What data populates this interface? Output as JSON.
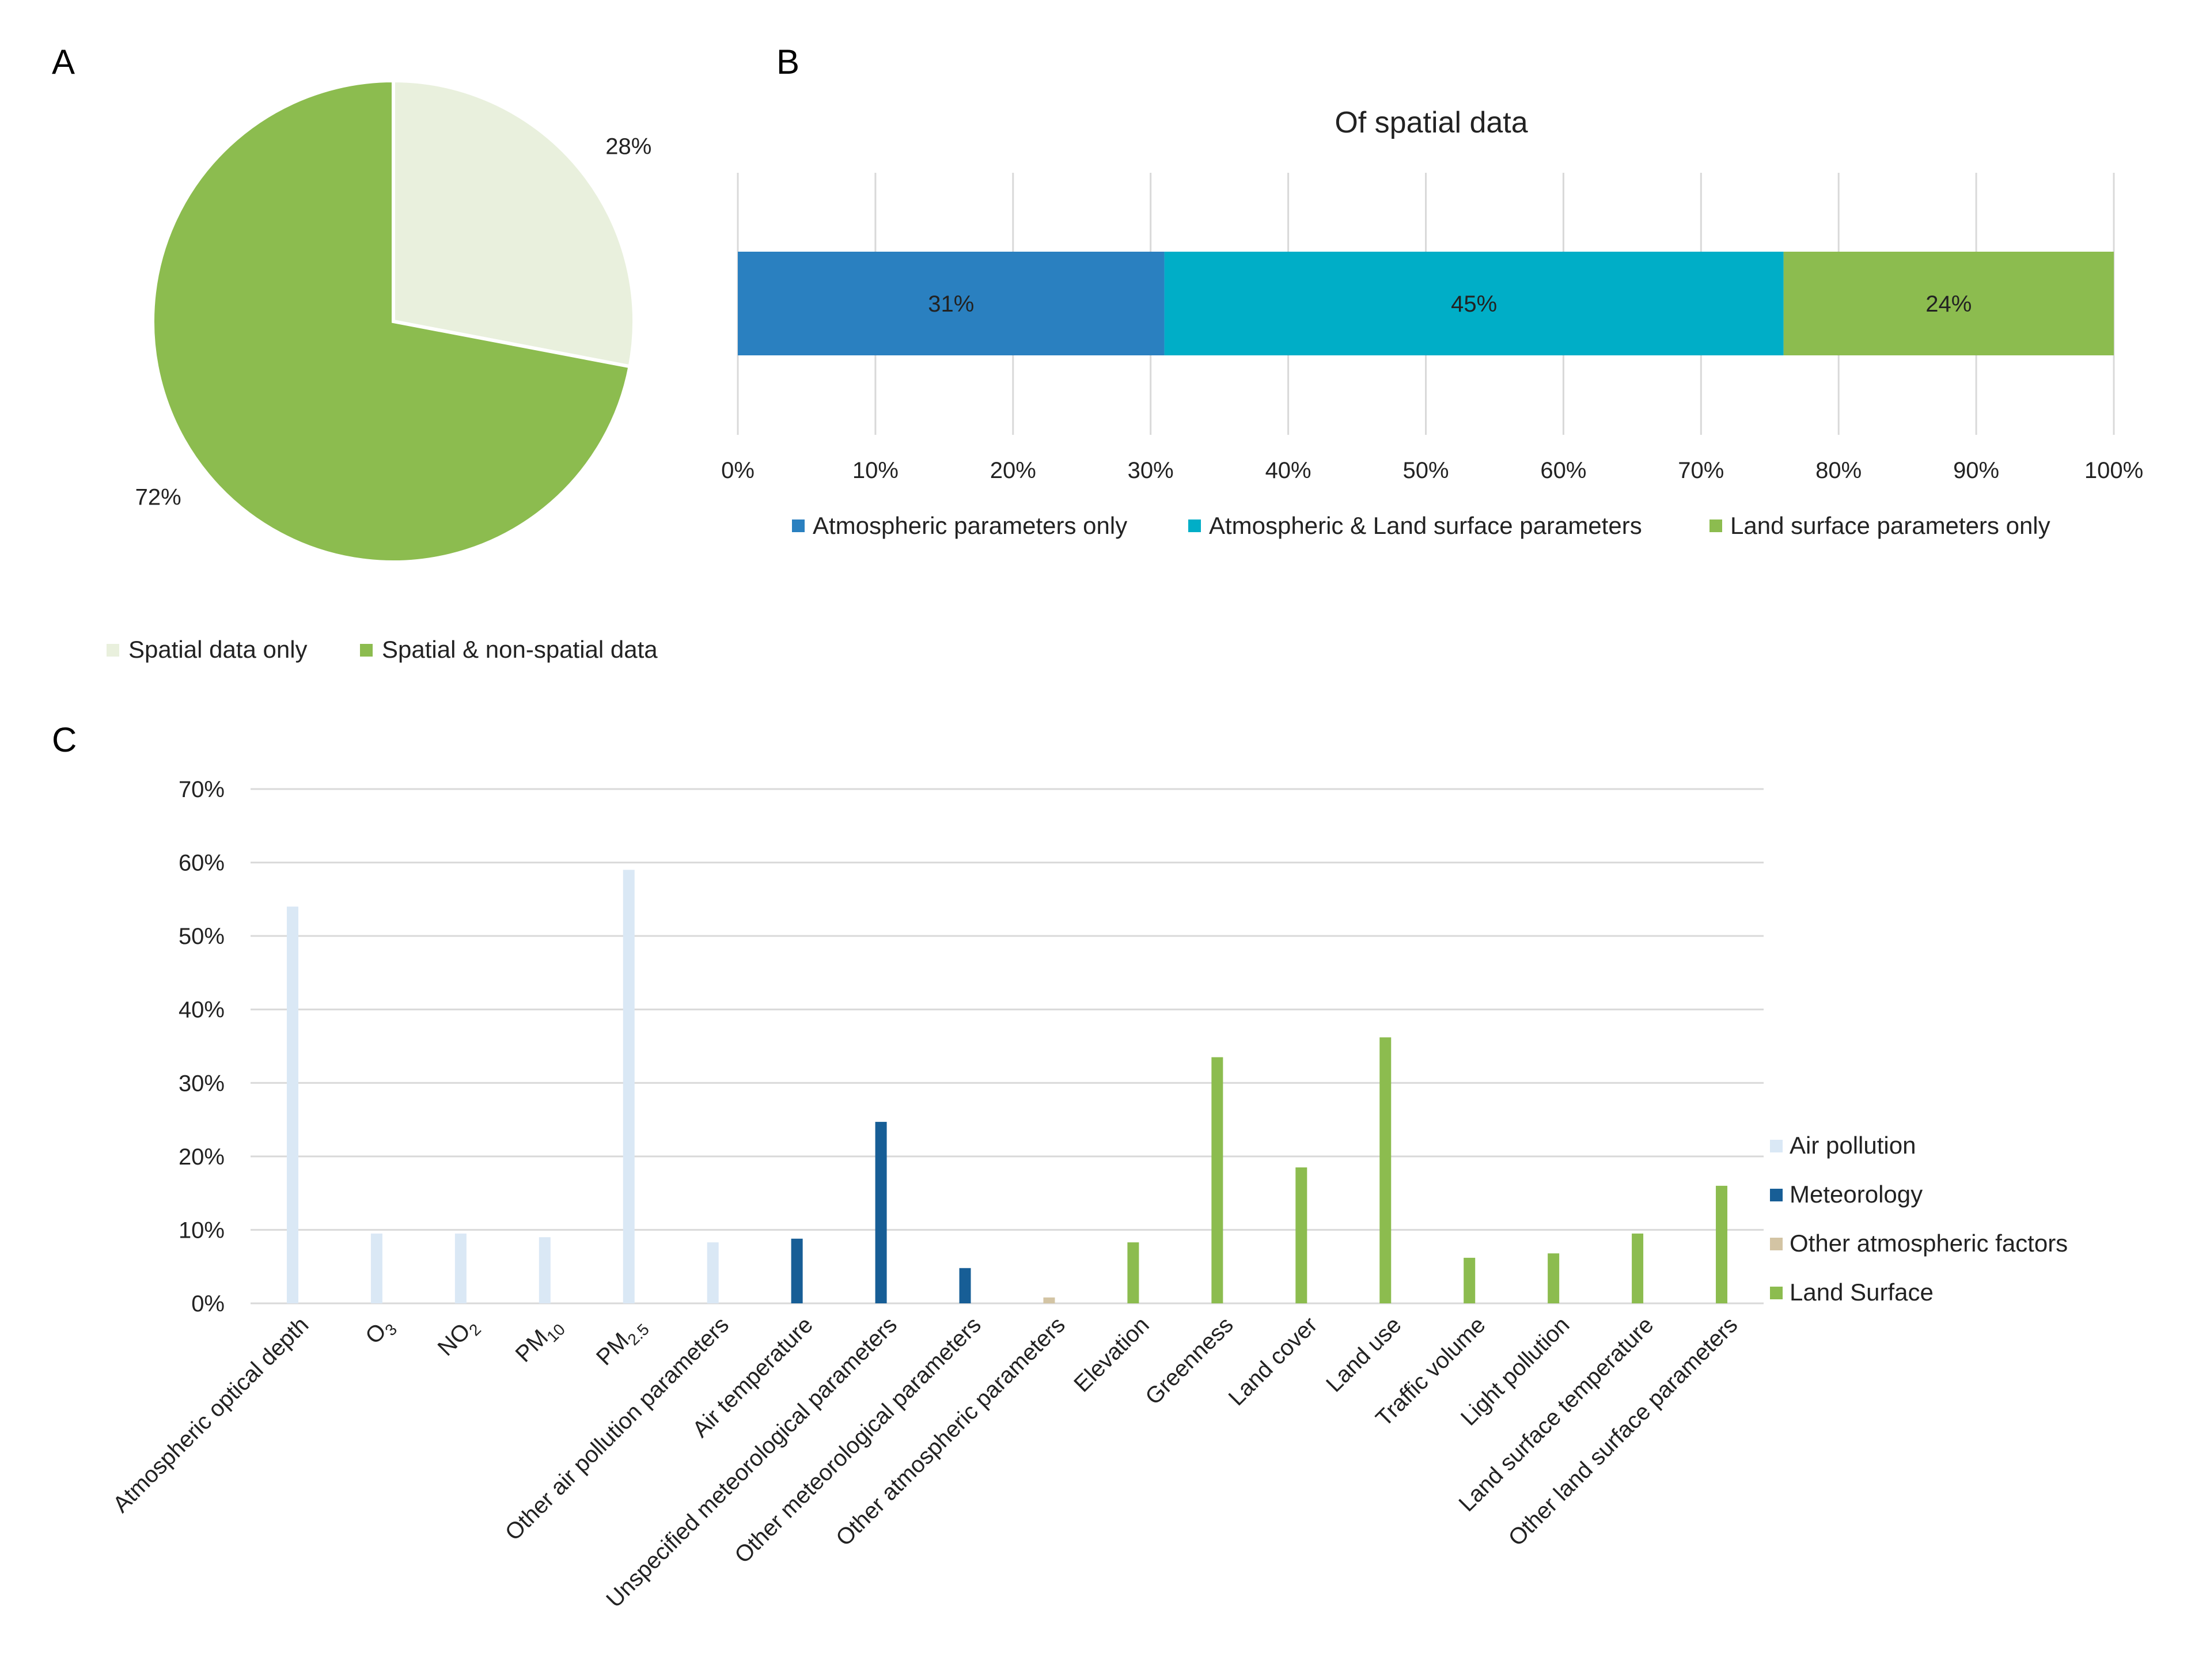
{
  "chart_data": [
    {
      "panel": "A",
      "type": "pie",
      "title": "",
      "slices": [
        {
          "name": "Spatial data only",
          "value": 28,
          "label": "28%",
          "color": "#e9f0dd"
        },
        {
          "name": "Spatial & non-spatial data",
          "value": 72,
          "label": "72%",
          "color": "#8cbc4f"
        }
      ],
      "legend": "bottom"
    },
    {
      "panel": "B",
      "type": "bar",
      "orientation": "horizontal-stacked-100",
      "title": "Of spatial data",
      "xlim": [
        0,
        100
      ],
      "ticks": [
        "0%",
        "10%",
        "20%",
        "30%",
        "40%",
        "50%",
        "60%",
        "70%",
        "80%",
        "90%",
        "100%"
      ],
      "series": [
        {
          "name": "Atmospheric parameters only",
          "value": 31,
          "label": "31%",
          "color": "#2a80c0"
        },
        {
          "name": "Atmospheric & Land surface parameters",
          "value": 45,
          "label": "45%",
          "color": "#00aec7"
        },
        {
          "name": "Land surface parameters only",
          "value": 24,
          "label": "24%",
          "color": "#8cbc4f"
        }
      ],
      "legend": "bottom",
      "grid": true
    },
    {
      "panel": "C",
      "type": "bar",
      "title": "",
      "ylim": [
        0,
        70
      ],
      "yticks": [
        "0%",
        "10%",
        "20%",
        "30%",
        "40%",
        "50%",
        "60%",
        "70%"
      ],
      "categories": [
        {
          "name": "Atmospheric optical depth",
          "sub": "",
          "value": 54,
          "group": 0
        },
        {
          "name": "O",
          "sub": "3",
          "value": 9.5,
          "group": 0
        },
        {
          "name": "NO",
          "sub": "2",
          "value": 9.5,
          "group": 0
        },
        {
          "name": "PM",
          "sub": "10",
          "value": 9,
          "group": 0
        },
        {
          "name": "PM",
          "sub": "2.5",
          "value": 59,
          "group": 0
        },
        {
          "name": "Other air pollution parameters",
          "sub": "",
          "value": 8.3,
          "group": 0
        },
        {
          "name": "Air temperature",
          "sub": "",
          "value": 8.8,
          "group": 1
        },
        {
          "name": "Unspecified meteorological parameters",
          "sub": "",
          "value": 24.7,
          "group": 1
        },
        {
          "name": "Other meteorological parameters",
          "sub": "",
          "value": 4.8,
          "group": 1
        },
        {
          "name": "Other atmospheric parameters",
          "sub": "",
          "value": 0.8,
          "group": 2
        },
        {
          "name": "Elevation",
          "sub": "",
          "value": 8.3,
          "group": 3
        },
        {
          "name": "Greenness",
          "sub": "",
          "value": 33.5,
          "group": 3
        },
        {
          "name": "Land cover",
          "sub": "",
          "value": 18.5,
          "group": 3
        },
        {
          "name": "Land use",
          "sub": "",
          "value": 36.2,
          "group": 3
        },
        {
          "name": "Traffic volume",
          "sub": "",
          "value": 6.2,
          "group": 3
        },
        {
          "name": "Light pollution",
          "sub": "",
          "value": 6.8,
          "group": 3
        },
        {
          "name": "Land surface temperature",
          "sub": "",
          "value": 9.5,
          "group": 3
        },
        {
          "name": "Other land surface parameters",
          "sub": "",
          "value": 16,
          "group": 3
        }
      ],
      "groups": [
        {
          "name": "Air pollution",
          "color": "#dae8f5"
        },
        {
          "name": "Meteorology",
          "color": "#175e96"
        },
        {
          "name": "Other atmospheric factors",
          "color": "#d3c4a4"
        },
        {
          "name": "Land Surface",
          "color": "#8cbc4f"
        }
      ],
      "legend": "right",
      "grid": true
    }
  ],
  "panels": {
    "a": "A",
    "b": "B",
    "c": "C"
  }
}
